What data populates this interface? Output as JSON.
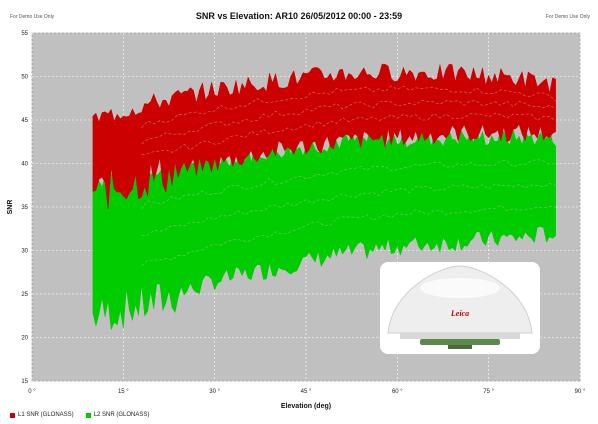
{
  "header": {
    "left_note": "For Demo Use Only",
    "right_note": "For Demo Use Only"
  },
  "chart_data": {
    "type": "scatter",
    "title": "SNR vs Elevation: AR10 26/05/2012 00:00 - 23:59",
    "xlabel": "Elevation (deg)",
    "ylabel": "SNR",
    "xlim": [
      0,
      90
    ],
    "ylim": [
      15,
      55
    ],
    "xticks": [
      "0 °",
      "15 °",
      "30 °",
      "45 °",
      "60 °",
      "75 °",
      "90 °"
    ],
    "yticks": [
      "15",
      "20",
      "25",
      "30",
      "35",
      "40",
      "45",
      "50",
      "55"
    ],
    "grid": true,
    "legend_position": "bottom-left",
    "series": [
      {
        "name": "L1 SNR (GLONASS)",
        "color": "#cc0000",
        "elevation_range": [
          10,
          86
        ],
        "upper_envelope": [
          [
            10,
            45
          ],
          [
            20,
            47
          ],
          [
            30,
            48.5
          ],
          [
            40,
            49.5
          ],
          [
            50,
            50.3
          ],
          [
            60,
            50.5
          ],
          [
            70,
            50.3
          ],
          [
            80,
            49.8
          ],
          [
            86,
            49
          ]
        ],
        "lower_envelope": [
          [
            10,
            36.5
          ],
          [
            20,
            38.5
          ],
          [
            30,
            40
          ],
          [
            40,
            41.5
          ],
          [
            50,
            42.5
          ],
          [
            60,
            43
          ],
          [
            70,
            43.5
          ],
          [
            80,
            43.5
          ],
          [
            86,
            43.5
          ]
        ]
      },
      {
        "name": "L2 SNR (GLONASS)",
        "color": "#00cc00",
        "elevation_range": [
          10,
          86
        ],
        "upper_envelope": [
          [
            10,
            38
          ],
          [
            20,
            39.5
          ],
          [
            30,
            40.5
          ],
          [
            40,
            41.5
          ],
          [
            50,
            42.5
          ],
          [
            60,
            42.8
          ],
          [
            70,
            43
          ],
          [
            80,
            43
          ],
          [
            86,
            43
          ]
        ],
        "lower_envelope": [
          [
            10,
            22.5
          ],
          [
            20,
            24
          ],
          [
            30,
            26.5
          ],
          [
            40,
            28
          ],
          [
            50,
            29.5
          ],
          [
            60,
            30.5
          ],
          [
            70,
            31
          ],
          [
            80,
            31.5
          ],
          [
            86,
            32
          ]
        ]
      }
    ]
  },
  "inset_image": {
    "icon": "gnss-antenna-icon",
    "brand_text": "Leica",
    "dome_color": "#eeeeee",
    "base_color": "#5a8a4a"
  }
}
